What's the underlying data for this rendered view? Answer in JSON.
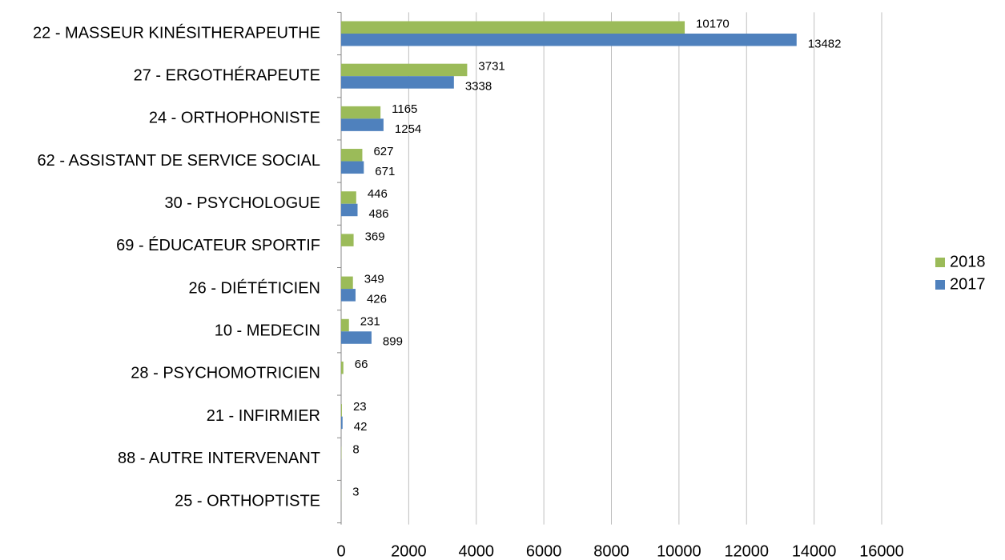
{
  "chart_data": {
    "type": "bar",
    "orientation": "horizontal",
    "categories": [
      "22 - MASSEUR KINÉSITHERAPEUTHE",
      "27 - ERGOTHÉRAPEUTE",
      "24 - ORTHOPHONISTE",
      "62 - ASSISTANT DE SERVICE SOCIAL",
      "30 - PSYCHOLOGUE",
      "69 - ÉDUCATEUR SPORTIF",
      "26 - DIÉTÉTICIEN",
      "10 - MEDECIN",
      "28 - PSYCHOMOTRICIEN",
      "21 - INFIRMIER",
      "88 - AUTRE INTERVENANT",
      "25 - ORTHOPTISTE"
    ],
    "series": [
      {
        "name": "2018",
        "color": "#9bbb59",
        "values": [
          10170,
          3731,
          1165,
          627,
          446,
          369,
          349,
          231,
          66,
          23,
          8,
          3
        ]
      },
      {
        "name": "2017",
        "color": "#4f81bd",
        "values": [
          13482,
          3338,
          1254,
          671,
          486,
          null,
          426,
          899,
          null,
          42,
          null,
          null
        ]
      }
    ],
    "xlim": [
      0,
      16000
    ],
    "xticks": [
      0,
      2000,
      4000,
      6000,
      8000,
      10000,
      12000,
      14000,
      16000
    ],
    "grid": true,
    "legend": "right"
  }
}
